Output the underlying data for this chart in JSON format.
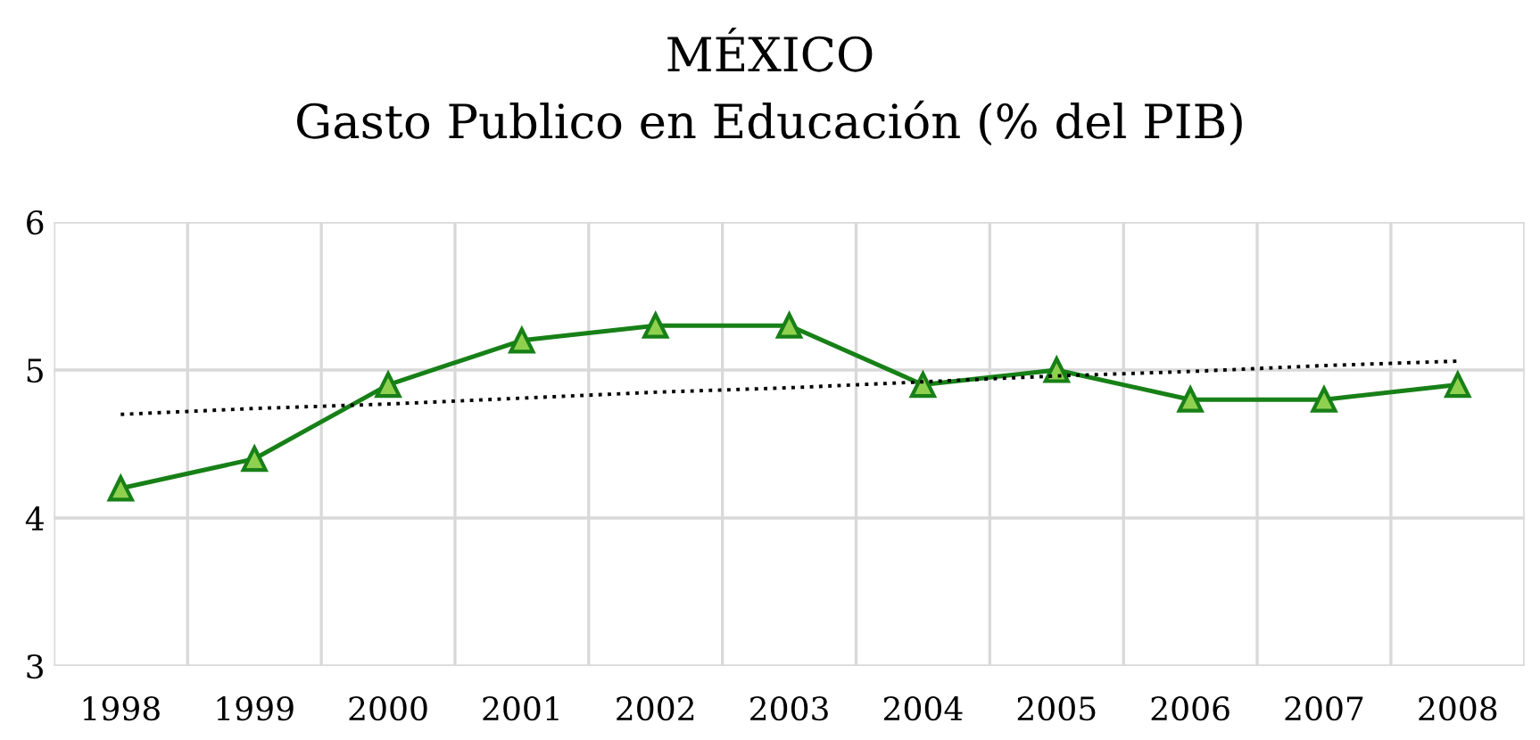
{
  "chart_data": {
    "type": "line",
    "title": "MÉXICO\nGasto Publico en Educación (% del PIB)",
    "categories": [
      "1998",
      "1999",
      "2000",
      "2001",
      "2002",
      "2003",
      "2004",
      "2005",
      "2006",
      "2007",
      "2008"
    ],
    "series": [
      {
        "color": "#178017",
        "values": [
          4.2,
          4.4,
          4.9,
          5.2,
          5.3,
          5.3,
          4.9,
          5.0,
          4.8,
          4.8,
          4.9
        ],
        "marker": "triangle",
        "line_style": "solid"
      },
      {
        "type": "line",
        "color": "#000000",
        "values": [
          4.7,
          4.74,
          4.77,
          4.81,
          4.85,
          4.88,
          4.92,
          4.96,
          4.99,
          5.03,
          5.06
        ],
        "marker": "none",
        "line_style": "dotted"
      }
    ],
    "ylim": [
      3,
      6
    ],
    "yticks": [
      3,
      4,
      5,
      6
    ],
    "grid": true,
    "legend": false
  }
}
